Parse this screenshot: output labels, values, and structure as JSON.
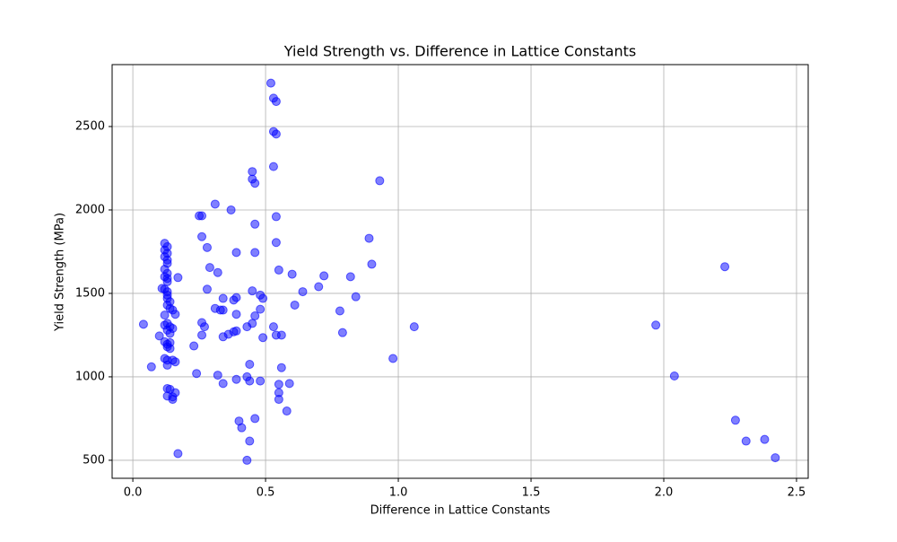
{
  "chart_data": {
    "type": "scatter",
    "title": "Yield Strength vs. Difference in Lattice Constants",
    "x_label": "Difference in Lattice Constants",
    "y_label": "Yield Strength (MPa)",
    "color": "blue",
    "grid": true,
    "xlim": [
      -0.078,
      2.544
    ],
    "ylim": [
      392,
      2871
    ],
    "xticks": [
      {
        "value": 0,
        "label": "0.0"
      },
      0.5,
      {
        "value": 1,
        "label": "1.0"
      },
      1.5,
      {
        "value": 2,
        "label": "2.0"
      },
      2.5
    ],
    "yticks": [
      500,
      1000,
      1500,
      2000,
      2500
    ],
    "x": [
      1.97,
      2.04,
      2.23,
      2.27,
      2.31,
      2.38,
      2.42,
      0.93,
      0.98,
      1.06,
      0.89,
      0.9,
      0.84,
      0.82,
      0.79,
      0.78,
      0.72,
      0.7,
      0.64,
      0.61,
      0.6,
      0.59,
      0.58,
      0.56,
      0.56,
      0.55,
      0.55,
      0.55,
      0.55,
      0.54,
      0.54,
      0.54,
      0.53,
      0.53,
      0.53,
      0.54,
      0.53,
      0.54,
      0.52,
      0.45,
      0.45,
      0.46,
      0.46,
      0.46,
      0.45,
      0.48,
      0.49,
      0.48,
      0.46,
      0.45,
      0.43,
      0.49,
      0.48,
      0.44,
      0.43,
      0.44,
      0.46,
      0.44,
      0.43,
      0.39,
      0.37,
      0.31,
      0.26,
      0.25,
      0.26,
      0.28,
      0.29,
      0.32,
      0.28,
      0.34,
      0.39,
      0.38,
      0.31,
      0.33,
      0.34,
      0.39,
      0.26,
      0.27,
      0.39,
      0.38,
      0.36,
      0.34,
      0.26,
      0.23,
      0.32,
      0.24,
      0.39,
      0.34,
      0.4,
      0.41,
      0.12,
      0.13,
      0.12,
      0.13,
      0.12,
      0.13,
      0.13,
      0.12,
      0.13,
      0.12,
      0.13,
      0.13,
      0.11,
      0.12,
      0.13,
      0.13,
      0.13,
      0.14,
      0.13,
      0.14,
      0.15,
      0.16,
      0.12,
      0.13,
      0.12,
      0.14,
      0.15,
      0.13,
      0.14,
      0.1,
      0.12,
      0.14,
      0.13,
      0.13,
      0.14,
      0.12,
      0.13,
      0.15,
      0.16,
      0.13,
      0.07,
      0.13,
      0.14,
      0.16,
      0.13,
      0.15,
      0.15,
      0.17,
      0.17,
      0.04
    ],
    "values": [
      1310,
      1005,
      1660,
      740,
      615,
      625,
      515,
      2175,
      1110,
      1300,
      1830,
      1675,
      1480,
      1600,
      1265,
      1395,
      1605,
      1540,
      1510,
      1430,
      1615,
      960,
      795,
      1250,
      1055,
      955,
      905,
      865,
      1640,
      1805,
      1960,
      1250,
      1300,
      2260,
      2470,
      2455,
      2670,
      2650,
      2760,
      2230,
      2185,
      2160,
      1915,
      1745,
      1515,
      1490,
      1470,
      1405,
      1365,
      1320,
      1300,
      1235,
      975,
      975,
      1000,
      1075,
      750,
      615,
      500,
      1745,
      2000,
      2035,
      1965,
      1965,
      1840,
      1775,
      1655,
      1625,
      1525,
      1470,
      1475,
      1460,
      1410,
      1400,
      1400,
      1375,
      1325,
      1300,
      1275,
      1270,
      1255,
      1240,
      1250,
      1185,
      1010,
      1020,
      985,
      960,
      735,
      695,
      1800,
      1780,
      1760,
      1740,
      1720,
      1700,
      1680,
      1645,
      1620,
      1600,
      1590,
      1570,
      1530,
      1525,
      1510,
      1490,
      1470,
      1450,
      1430,
      1410,
      1400,
      1375,
      1370,
      1320,
      1310,
      1300,
      1290,
      1280,
      1260,
      1245,
      1210,
      1205,
      1195,
      1180,
      1170,
      1110,
      1100,
      1100,
      1090,
      1070,
      1060,
      930,
      925,
      905,
      885,
      880,
      865,
      1595,
      540,
      1315
    ]
  }
}
